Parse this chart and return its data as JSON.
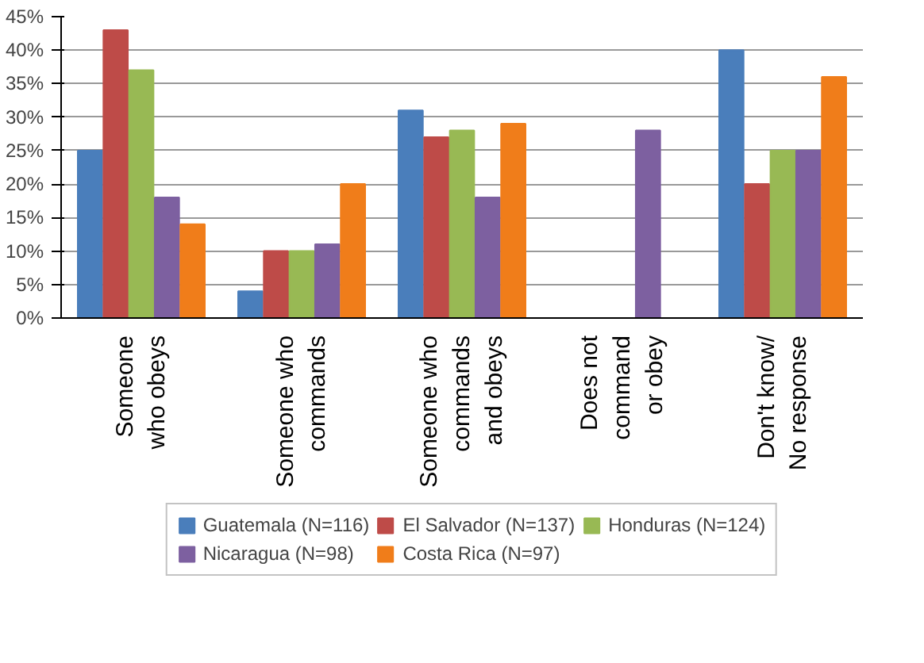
{
  "chart_data": {
    "type": "bar",
    "categories": [
      "Someone\nwho obeys",
      "Someone who\ncommands",
      "Someone who\ncommands\nand obeys",
      "Does not\ncommand\nor obey",
      "Don't know/\nNo response"
    ],
    "series": [
      {
        "name": "Guatemala (N=116)",
        "color": "#4a7ebb",
        "values": [
          25,
          4,
          31,
          0,
          40
        ]
      },
      {
        "name": "El Salvador (N=137)",
        "color": "#be4b48",
        "values": [
          43,
          10,
          27,
          0,
          20
        ]
      },
      {
        "name": "Honduras (N=124)",
        "color": "#98b954",
        "values": [
          37,
          10,
          28,
          0,
          25
        ]
      },
      {
        "name": "Nicaragua (N=98)",
        "color": "#7d60a0",
        "values": [
          18,
          11,
          18,
          28,
          25
        ]
      },
      {
        "name": "Costa Rica (N=97)",
        "color": "#f07d1a",
        "values": [
          14,
          20,
          29,
          0,
          36
        ]
      }
    ],
    "ylim": [
      0,
      45
    ],
    "yticks": [
      {
        "value": 0,
        "label": "0%"
      },
      {
        "value": 5,
        "label": "5%"
      },
      {
        "value": 10,
        "label": "10%"
      },
      {
        "value": 15,
        "label": "15%"
      },
      {
        "value": 20,
        "label": "20%"
      },
      {
        "value": 25,
        "label": "25%"
      },
      {
        "value": 30,
        "label": "30%"
      },
      {
        "value": 35,
        "label": "35%"
      },
      {
        "value": 40,
        "label": "40%"
      },
      {
        "value": 45,
        "label": "45%"
      }
    ],
    "grid": "y",
    "legend": "bottom"
  }
}
